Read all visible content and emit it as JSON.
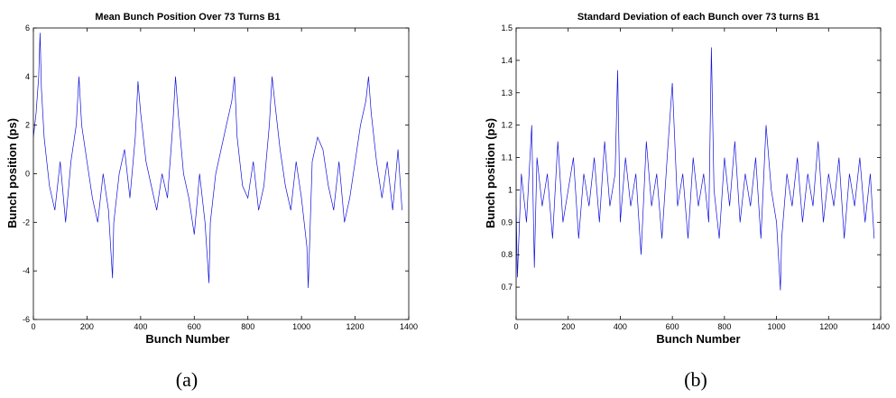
{
  "chart_data": [
    {
      "type": "line",
      "title": "Mean Bunch Position Over 73 Turns B1",
      "xlabel": "Bunch Number",
      "ylabel": "Bunch position (ps)",
      "xlim": [
        0,
        1400
      ],
      "ylim": [
        -6,
        6
      ],
      "xticks": [
        0,
        200,
        400,
        600,
        800,
        1000,
        1200,
        1400
      ],
      "yticks": [
        -6,
        -4,
        -2,
        0,
        2,
        4,
        6
      ],
      "grid": false,
      "caption": "(a)",
      "series": [
        {
          "color": "#1010dd",
          "x": [
            0,
            10,
            20,
            25,
            30,
            40,
            60,
            80,
            100,
            120,
            140,
            160,
            170,
            180,
            200,
            220,
            240,
            260,
            280,
            295,
            300,
            320,
            340,
            360,
            380,
            390,
            400,
            420,
            440,
            460,
            480,
            500,
            520,
            530,
            540,
            560,
            580,
            600,
            620,
            640,
            655,
            660,
            680,
            700,
            720,
            740,
            750,
            760,
            780,
            800,
            820,
            840,
            860,
            880,
            890,
            900,
            920,
            940,
            960,
            980,
            1000,
            1020,
            1025,
            1040,
            1060,
            1080,
            1100,
            1120,
            1140,
            1160,
            1180,
            1200,
            1220,
            1240,
            1250,
            1260,
            1280,
            1300,
            1320,
            1340,
            1360,
            1375
          ],
          "y": [
            1.5,
            2.5,
            4.0,
            5.8,
            3.5,
            1.5,
            -0.5,
            -1.5,
            0.5,
            -2.0,
            0.5,
            2.0,
            4.0,
            2.0,
            0.5,
            -1.0,
            -2.0,
            0.0,
            -1.5,
            -4.3,
            -2.0,
            0.0,
            1.0,
            -1.0,
            1.5,
            3.8,
            2.5,
            0.5,
            -0.5,
            -1.5,
            0.0,
            -1.0,
            2.0,
            4.0,
            2.5,
            0.0,
            -1.0,
            -2.5,
            0.0,
            -2.0,
            -4.5,
            -2.0,
            0.0,
            1.0,
            2.0,
            3.0,
            4.0,
            1.5,
            -0.5,
            -1.0,
            0.5,
            -1.5,
            -0.5,
            2.0,
            4.0,
            3.0,
            1.0,
            -0.5,
            -1.5,
            0.5,
            -1.0,
            -3.0,
            -4.7,
            0.5,
            1.5,
            1.0,
            -0.5,
            -1.5,
            0.5,
            -2.0,
            -1.0,
            0.5,
            2.0,
            3.0,
            4.0,
            2.5,
            0.5,
            -1.0,
            0.5,
            -1.5,
            1.0,
            -1.5
          ]
        }
      ]
    },
    {
      "type": "line",
      "title": "Standard Deviation of each Bunch over 73 turns B1",
      "xlabel": "Bunch Number",
      "ylabel": "Bunch position (ps)",
      "xlim": [
        0,
        1400
      ],
      "ylim": [
        0.6,
        1.5
      ],
      "xticks": [
        0,
        200,
        400,
        600,
        800,
        1000,
        1200,
        1400
      ],
      "yticks": [
        0.7,
        0.8,
        0.9,
        1,
        1.1,
        1.2,
        1.3,
        1.4,
        1.5
      ],
      "grid": false,
      "caption": "(b)",
      "series": [
        {
          "color": "#1010dd",
          "x": [
            0,
            5,
            20,
            40,
            60,
            70,
            80,
            100,
            120,
            140,
            160,
            180,
            200,
            220,
            240,
            260,
            280,
            300,
            320,
            340,
            360,
            380,
            390,
            400,
            420,
            440,
            460,
            480,
            500,
            520,
            540,
            560,
            580,
            600,
            620,
            640,
            660,
            680,
            700,
            720,
            740,
            750,
            760,
            780,
            800,
            820,
            840,
            860,
            880,
            900,
            920,
            940,
            960,
            980,
            1000,
            1015,
            1020,
            1040,
            1060,
            1080,
            1100,
            1120,
            1140,
            1160,
            1180,
            1200,
            1220,
            1240,
            1260,
            1280,
            1300,
            1320,
            1340,
            1360,
            1375
          ],
          "y": [
            0.95,
            0.73,
            1.05,
            0.9,
            1.2,
            0.76,
            1.1,
            0.95,
            1.05,
            0.85,
            1.15,
            0.9,
            1.0,
            1.1,
            0.85,
            1.05,
            0.95,
            1.1,
            0.9,
            1.15,
            0.95,
            1.05,
            1.37,
            0.9,
            1.1,
            0.95,
            1.05,
            0.8,
            1.15,
            0.95,
            1.05,
            0.85,
            1.1,
            1.33,
            0.95,
            1.05,
            0.85,
            1.1,
            0.95,
            1.05,
            0.9,
            1.44,
            1.0,
            0.85,
            1.1,
            0.95,
            1.15,
            0.9,
            1.05,
            0.95,
            1.1,
            0.85,
            1.2,
            1.0,
            0.9,
            0.69,
            0.85,
            1.05,
            0.95,
            1.1,
            0.9,
            1.05,
            0.95,
            1.15,
            0.9,
            1.05,
            0.95,
            1.1,
            0.85,
            1.05,
            0.95,
            1.1,
            0.9,
            1.05,
            0.85
          ]
        }
      ]
    }
  ]
}
